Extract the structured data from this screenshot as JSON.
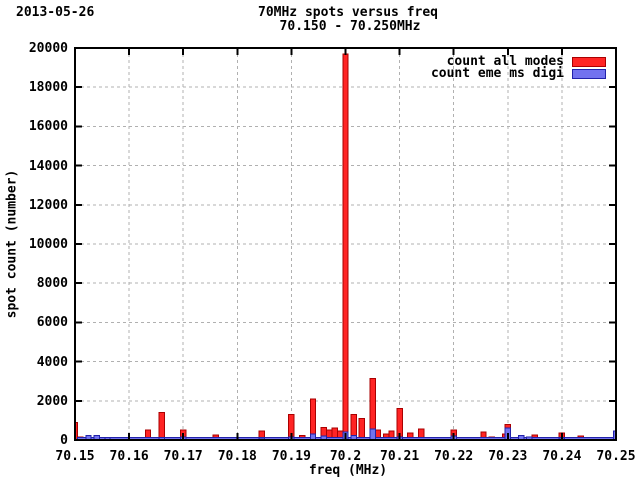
{
  "date_label": "2013-05-26",
  "chart_data": {
    "type": "bar",
    "title": "70MHz spots versus freq",
    "subtitle": "70.150 - 70.250MHz",
    "xlabel": "freq (MHz)",
    "ylabel": "spot count (number)",
    "xlim": [
      70.15,
      70.25
    ],
    "ylim": [
      0,
      20000
    ],
    "grid": true,
    "legend_position": "top-right-inside",
    "bin_width_mhz": 0.001,
    "colors": {
      "all_modes_fill": "#ff2424",
      "all_modes_border": "#aa0000",
      "eme_fill": "#7272ef",
      "eme_border": "#2222aa",
      "grid": "#b0b0b0",
      "axis": "#000000"
    },
    "x_ticks": [
      {
        "v": 70.15,
        "label": "70.15"
      },
      {
        "v": 70.16,
        "label": "70.16"
      },
      {
        "v": 70.17,
        "label": "70.17"
      },
      {
        "v": 70.18,
        "label": "70.18"
      },
      {
        "v": 70.19,
        "label": "70.19"
      },
      {
        "v": 70.2,
        "label": "70.2"
      },
      {
        "v": 70.21,
        "label": "70.21"
      },
      {
        "v": 70.22,
        "label": "70.22"
      },
      {
        "v": 70.23,
        "label": "70.23"
      },
      {
        "v": 70.24,
        "label": "70.24"
      },
      {
        "v": 70.25,
        "label": "70.25"
      }
    ],
    "y_ticks": [
      {
        "v": 0,
        "label": "0"
      },
      {
        "v": 2000,
        "label": "2000"
      },
      {
        "v": 4000,
        "label": "4000"
      },
      {
        "v": 6000,
        "label": "6000"
      },
      {
        "v": 8000,
        "label": "8000"
      },
      {
        "v": 10000,
        "label": "10000"
      },
      {
        "v": 12000,
        "label": "12000"
      },
      {
        "v": 14000,
        "label": "14000"
      },
      {
        "v": 16000,
        "label": "16000"
      },
      {
        "v": 18000,
        "label": "18000"
      },
      {
        "v": 20000,
        "label": "20000"
      }
    ],
    "series": [
      {
        "name": "count all modes",
        "fill": "#ff2424",
        "border": "#aa0000",
        "points": [
          [
            70.15,
            900
          ],
          [
            70.151,
            150
          ],
          [
            70.1635,
            500
          ],
          [
            70.166,
            1400
          ],
          [
            70.17,
            500
          ],
          [
            70.176,
            250
          ],
          [
            70.181,
            120
          ],
          [
            70.1845,
            450
          ],
          [
            70.188,
            130
          ],
          [
            70.19,
            1300
          ],
          [
            70.192,
            220
          ],
          [
            70.194,
            2100
          ],
          [
            70.196,
            650
          ],
          [
            70.197,
            500
          ],
          [
            70.198,
            620
          ],
          [
            70.199,
            450
          ],
          [
            70.2,
            19700
          ],
          [
            70.2015,
            1300
          ],
          [
            70.203,
            1100
          ],
          [
            70.205,
            3150
          ],
          [
            70.206,
            500
          ],
          [
            70.2075,
            300
          ],
          [
            70.2085,
            450
          ],
          [
            70.21,
            1600
          ],
          [
            70.212,
            350
          ],
          [
            70.214,
            550
          ],
          [
            70.216,
            120
          ],
          [
            70.22,
            500
          ],
          [
            70.2215,
            120
          ],
          [
            70.2255,
            400
          ],
          [
            70.227,
            150
          ],
          [
            70.2295,
            300
          ],
          [
            70.23,
            800
          ],
          [
            70.235,
            250
          ],
          [
            70.24,
            350
          ],
          [
            70.2435,
            200
          ]
        ]
      },
      {
        "name": "count eme ms digi",
        "fill": "#7272ef",
        "border": "#2222aa",
        "baseline": {
          "from": 70.1505,
          "to": 70.2505,
          "count": 120
        },
        "points": [
          [
            70.1525,
            220
          ],
          [
            70.154,
            220
          ],
          [
            70.156,
            130
          ],
          [
            70.166,
            140
          ],
          [
            70.17,
            160
          ],
          [
            70.1845,
            110
          ],
          [
            70.19,
            160
          ],
          [
            70.194,
            300
          ],
          [
            70.196,
            200
          ],
          [
            70.2,
            400
          ],
          [
            70.2015,
            220
          ],
          [
            70.205,
            560
          ],
          [
            70.21,
            160
          ],
          [
            70.22,
            200
          ],
          [
            70.23,
            600
          ],
          [
            70.2325,
            220
          ],
          [
            70.234,
            150
          ],
          [
            70.24,
            110
          ],
          [
            70.25,
            450
          ]
        ]
      }
    ]
  }
}
